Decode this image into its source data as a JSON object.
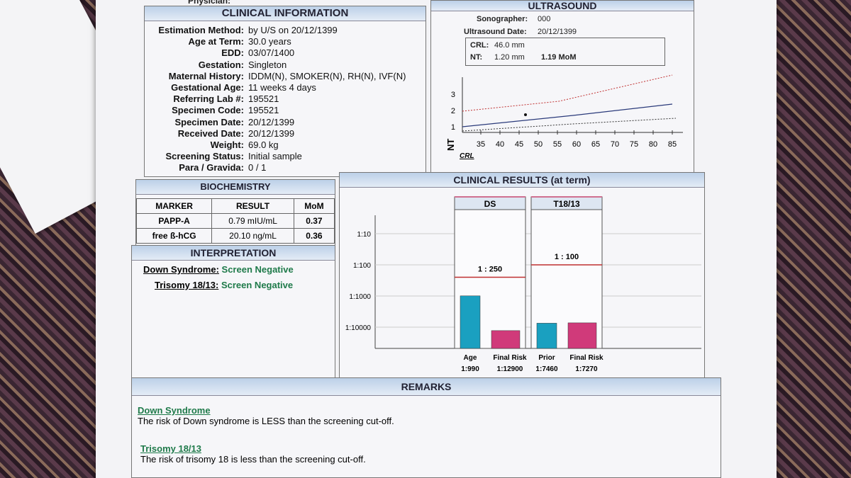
{
  "top_cut": "Physician:",
  "clinical": {
    "title": "CLINICAL INFORMATION",
    "fields": [
      {
        "k": "Estimation Method:",
        "v": "by U/S on 20/12/1399"
      },
      {
        "k": "Age at Term:",
        "v": "30.0 years"
      },
      {
        "k": "EDD:",
        "v": "03/07/1400"
      },
      {
        "k": "Gestation:",
        "v": "Singleton"
      },
      {
        "k": "Maternal History:",
        "v": "IDDM(N), SMOKER(N), RH(N), IVF(N)"
      },
      {
        "k": "Gestational Age:",
        "v": "11 weeks 4 days"
      },
      {
        "k": "Referring Lab #:",
        "v": "195521"
      },
      {
        "k": "Specimen Code:",
        "v": "195521"
      },
      {
        "k": "Specimen Date:",
        "v": "20/12/1399"
      },
      {
        "k": "Received Date:",
        "v": "20/12/1399"
      },
      {
        "k": "Weight:",
        "v": "69.0 kg"
      },
      {
        "k": "Screening Status:",
        "v": "Initial sample"
      },
      {
        "k": "Para / Gravida:",
        "v": "0 / 1"
      }
    ]
  },
  "ultrasound": {
    "title": "ULTRASOUND",
    "sonographer_label": "Sonographer:",
    "sonographer": "000",
    "date_label": "Ultrasound Date:",
    "date": "20/12/1399",
    "crl_label": "CRL:",
    "crl": "46.0 mm",
    "nt_label": "NT:",
    "nt": "1.20 mm",
    "nt_mom": "1.19 MoM",
    "x_ticks": [
      "35",
      "40",
      "45",
      "50",
      "55",
      "60",
      "65",
      "70",
      "75",
      "80",
      "85"
    ],
    "y_ticks": [
      "1",
      "2",
      "3"
    ],
    "x_axis_label": "CRL",
    "y_axis_label": "NT"
  },
  "biochem": {
    "title": "BIOCHEMISTRY",
    "headers": [
      "MARKER",
      "RESULT",
      "MoM"
    ],
    "rows": [
      [
        "PAPP-A",
        "0.79 mIU/mL",
        "0.37"
      ],
      [
        "free ß-hCG",
        "20.10 ng/mL",
        "0.36"
      ]
    ]
  },
  "interp": {
    "title": "INTERPRETATION",
    "ds_label": "Down Syndrome:",
    "ds_val": "Screen Negative",
    "t_label": "Trisomy 18/13:",
    "t_val": "Screen Negative"
  },
  "results": {
    "title": "CLINICAL RESULTS (at term)",
    "y_ticks": [
      "1:10",
      "1:100",
      "1:1000",
      "1:10000"
    ],
    "ds_title": "DS",
    "ds_cutoff": "1 : 250",
    "t_title": "T18/13",
    "t_cutoff": "1 : 100",
    "ds_labels": [
      "Age",
      "Final Risk"
    ],
    "ds_values": [
      "1:990",
      "1:12900"
    ],
    "t_labels": [
      "Prior",
      "Final Risk"
    ],
    "t_values": [
      "1:7460",
      "1:7270"
    ]
  },
  "chart_data": {
    "type": "bar",
    "title": "CLINICAL RESULTS (at term)",
    "y_scale": "log risk",
    "ylim": [
      "1:10",
      "1:10000"
    ],
    "groups": [
      {
        "name": "DS",
        "cutoff": "1 : 250",
        "bars": [
          {
            "label": "Age",
            "value": "1:990"
          },
          {
            "label": "Final Risk",
            "value": "1:12900"
          }
        ]
      },
      {
        "name": "T18/13",
        "cutoff": "1 : 100",
        "bars": [
          {
            "label": "Prior",
            "value": "1:7460"
          },
          {
            "label": "Final Risk",
            "value": "1:7270"
          }
        ]
      }
    ],
    "colors": {
      "first": "#1aa0c0",
      "second": "#d03a7a",
      "cutoff": "#c03030"
    }
  },
  "remarks": {
    "title": "REMARKS",
    "ds_head": "Down Syndrome",
    "ds_text": "The risk of Down syndrome is LESS than the screening cut-off.",
    "t_head": "Trisomy 18/13",
    "t_text": "The risk of trisomy 18 is less than the screening cut-off."
  }
}
